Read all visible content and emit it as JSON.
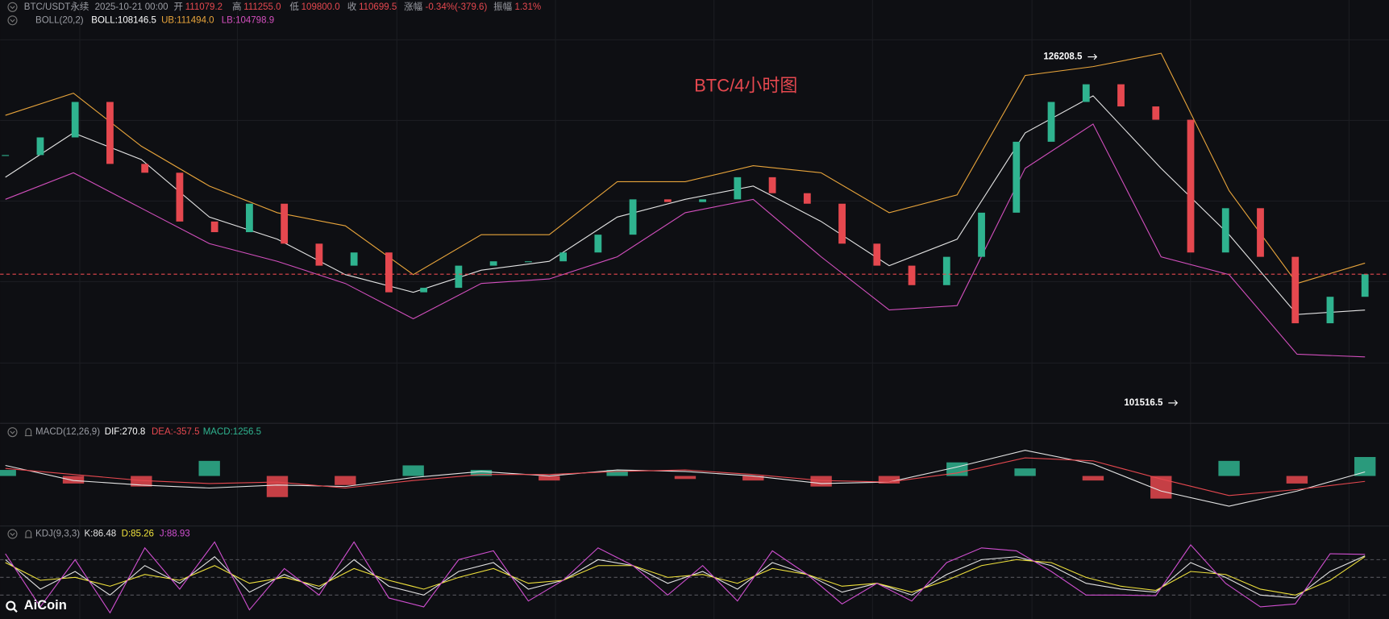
{
  "header": {
    "symbol": "BTC/USDT永续",
    "datetime": "2025-10-21 00:00",
    "open_label": "开",
    "open": "111079.2",
    "high_label": "高",
    "high": "111255.0",
    "low_label": "低",
    "low": "109800.0",
    "close_label": "收",
    "close": "110699.5",
    "change_label": "涨幅",
    "change": "-0.34%(-379.6)",
    "amplitude_label": "振幅",
    "amplitude": "1.31%"
  },
  "chart_data": [
    {
      "type": "candlestick",
      "title": "BTC/4小时图",
      "indicator": "BOLL(20,2)",
      "ylim": [
        100000,
        129000
      ],
      "up_color": "#2fb38f",
      "down_color": "#e5484f",
      "close": [
        119200,
        120460,
        122990,
        118570,
        117940,
        114460,
        113700,
        115730,
        112880,
        111310,
        112250,
        109410,
        109730,
        111310,
        111620,
        111620,
        112250,
        113520,
        116040,
        115850,
        116040,
        117620,
        116480,
        115730,
        112880,
        111310,
        109920,
        111940,
        115090,
        120150,
        122990,
        124250,
        122670,
        121720,
        112250,
        115410,
        111940,
        107200,
        109090,
        110699.5
      ],
      "extremes": [
        126208.5,
        101516.5
      ],
      "series": [
        {
          "name": "BOLL:108146.5",
          "color": "#e4e4e4",
          "values": [
            117620,
            120780,
            118880,
            114780,
            113200,
            110670,
            109410,
            110990,
            111620,
            114780,
            116040,
            116990,
            114460,
            111310,
            113200,
            120780,
            123430,
            118250,
            113520,
            107830,
            108146.5
          ]
        },
        {
          "name": "UB:111494.0",
          "color": "#e9a53b",
          "values": [
            122040,
            123620,
            119830,
            116990,
            115090,
            114150,
            110670,
            113520,
            113520,
            117300,
            117300,
            118440,
            117940,
            115090,
            116360,
            124880,
            125510,
            126460,
            116670,
            110040,
            111494.0
          ]
        },
        {
          "name": "LB:104798.9",
          "color": "#d24fbd",
          "values": [
            116040,
            117940,
            115410,
            112880,
            111620,
            110040,
            107520,
            110040,
            110360,
            111940,
            115090,
            116040,
            111940,
            108150,
            108460,
            118250,
            121410,
            111940,
            110670,
            104990,
            104798.9
          ]
        }
      ]
    },
    {
      "type": "macd",
      "indicator": "MACD(12,26,9)",
      "ylim": [
        -3200,
        2200
      ],
      "series": [
        {
          "name": "DIF:270.8",
          "type": "line",
          "color": "#e4e4e4",
          "values": [
            700,
            -300,
            -600,
            -800,
            -600,
            -700,
            -100,
            300,
            0,
            400,
            300,
            0,
            -500,
            -400,
            600,
            1700,
            800,
            -1000,
            -2000,
            -1000,
            270.8
          ]
        },
        {
          "name": "DEA:-357.5",
          "type": "line",
          "color": "#e5484f",
          "values": [
            500,
            100,
            -300,
            -500,
            -400,
            -800,
            -300,
            100,
            100,
            300,
            400,
            100,
            -300,
            -400,
            200,
            1200,
            1000,
            -200,
            -1300,
            -900,
            -357.5
          ]
        },
        {
          "name": "MACD:1256.5",
          "type": "histogram",
          "colors": [
            "#2fb38f",
            "#e5484f"
          ],
          "values": [
            400,
            -500,
            -700,
            1000,
            -1400,
            -600,
            700,
            400,
            -300,
            400,
            -200,
            -300,
            -700,
            -500,
            900,
            500,
            -300,
            -1500,
            1000,
            -500,
            1256.5
          ]
        }
      ]
    },
    {
      "type": "kdj",
      "indicator": "KDJ(9,3,3)",
      "ylim": [
        -10,
        110
      ],
      "levels": [
        20,
        50,
        80
      ],
      "series": [
        {
          "name": "K:86.48",
          "color": "#e4e4e4",
          "values": [
            80,
            30,
            60,
            20,
            70,
            40,
            85,
            25,
            55,
            30,
            80,
            35,
            20,
            60,
            75,
            30,
            45,
            80,
            70,
            40,
            60,
            30,
            75,
            55,
            25,
            40,
            20,
            55,
            80,
            85,
            70,
            40,
            30,
            25,
            75,
            50,
            20,
            15,
            60,
            86.48
          ]
        },
        {
          "name": "D:85.26",
          "color": "#f0e23c",
          "values": [
            75,
            45,
            50,
            35,
            55,
            45,
            70,
            40,
            50,
            35,
            65,
            45,
            30,
            50,
            65,
            40,
            45,
            70,
            70,
            50,
            55,
            40,
            65,
            55,
            35,
            40,
            25,
            45,
            70,
            80,
            75,
            50,
            35,
            28,
            60,
            55,
            30,
            20,
            45,
            85.26
          ]
        },
        {
          "name": "J:88.93",
          "color": "#d04fd0",
          "values": [
            90,
            0,
            80,
            -10,
            100,
            30,
            110,
            -5,
            65,
            20,
            110,
            15,
            0,
            80,
            95,
            10,
            45,
            100,
            70,
            20,
            70,
            10,
            95,
            55,
            5,
            40,
            10,
            75,
            100,
            95,
            60,
            20,
            20,
            19,
            105,
            40,
            0,
            5,
            90,
            88.93
          ]
        }
      ]
    }
  ],
  "logo": "AiCoin"
}
